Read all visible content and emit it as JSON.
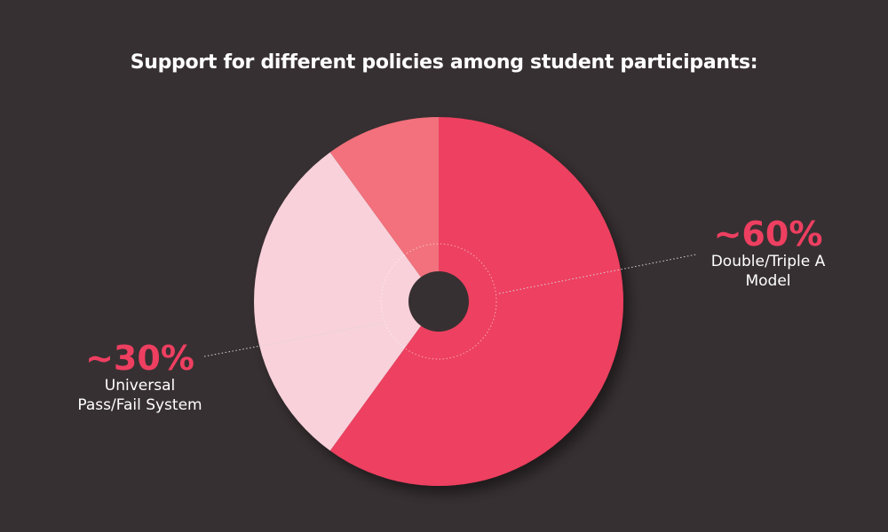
{
  "colors": {
    "background": "#373032",
    "title": "#ffffff",
    "callout_value": "#ee3f61",
    "callout_text": "#ffffff",
    "leader_line": "#d8d3d4",
    "inner_ring": "#ffffff"
  },
  "chart_data": {
    "type": "pie",
    "title": "Support for different policies among student participants:",
    "slices": [
      {
        "value": 60,
        "color": "#ee3f61"
      },
      {
        "value": 30,
        "color": "#f9d1da"
      },
      {
        "value": 10,
        "color": "#f2717c"
      }
    ],
    "callouts": [
      {
        "value_label": "~60%",
        "label_lines": [
          "Double/Triple A",
          "Model"
        ]
      },
      {
        "value_label": "~30%",
        "label_lines": [
          "Universal",
          "Pass/Fail System"
        ]
      }
    ]
  }
}
